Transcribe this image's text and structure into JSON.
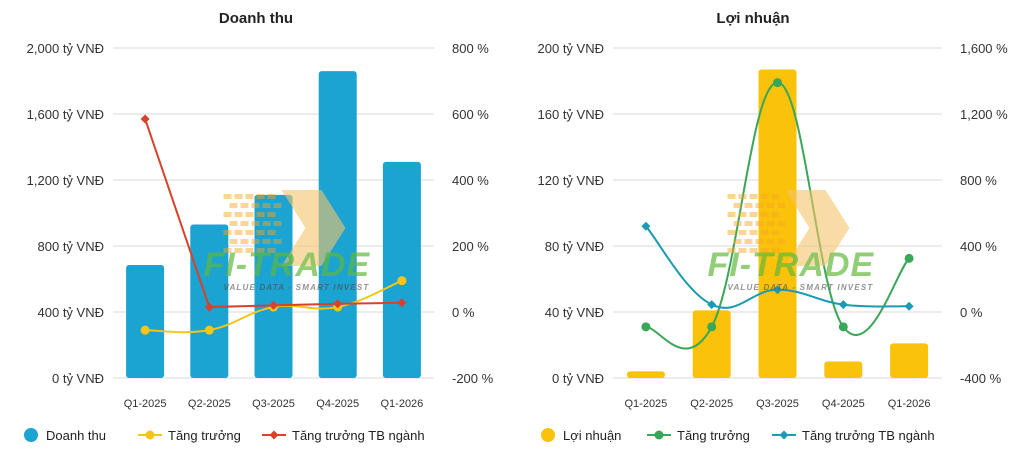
{
  "chart_data": [
    {
      "type": "bar",
      "title": "Doanh thu",
      "categories": [
        "Q1-2025",
        "Q2-2025",
        "Q3-2025",
        "Q4-2025",
        "Q1-2026"
      ],
      "ylim": [
        0,
        2000
      ],
      "yticks": [
        "0 tỷ VNĐ",
        "400 tỷ VNĐ",
        "800 tỷ VNĐ",
        "1,200 tỷ VNĐ",
        "1,600 tỷ VNĐ",
        "2,000 tỷ VNĐ"
      ],
      "y2lim": [
        -200,
        800
      ],
      "y2ticks": [
        "-200 %",
        "0 %",
        "200 %",
        "400 %",
        "600 %",
        "800 %"
      ],
      "grid": true,
      "legend_position": "bottom",
      "series": [
        {
          "name": "Doanh thu",
          "kind": "bar",
          "axis": "left",
          "color": "#1ba3d1",
          "values": [
            685,
            930,
            1110,
            1860,
            1310
          ]
        },
        {
          "name": "Tăng trưởng",
          "kind": "line",
          "axis": "right",
          "color": "#f5c518",
          "marker": "circle",
          "values": [
            -55,
            -55,
            15,
            15,
            95
          ]
        },
        {
          "name": "Tăng trưởng TB ngành",
          "kind": "line",
          "axis": "right",
          "color": "#d9412b",
          "marker": "diamond",
          "values": [
            585,
            15,
            20,
            25,
            28
          ]
        }
      ]
    },
    {
      "type": "bar",
      "title": "Lợi nhuận",
      "categories": [
        "Q1-2025",
        "Q2-2025",
        "Q3-2025",
        "Q4-2025",
        "Q1-2026"
      ],
      "ylim": [
        0,
        200
      ],
      "yticks": [
        "0 tỷ VNĐ",
        "40 tỷ VNĐ",
        "80 tỷ VNĐ",
        "120 tỷ VNĐ",
        "160 tỷ VNĐ",
        "200 tỷ VNĐ"
      ],
      "y2lim": [
        -400,
        1600
      ],
      "y2ticks": [
        "-400 %",
        "0 %",
        "400 %",
        "800 %",
        "1,200 %",
        "1,600 %"
      ],
      "grid": true,
      "legend_position": "bottom",
      "series": [
        {
          "name": "Lợi nhuận",
          "kind": "bar",
          "axis": "left",
          "color": "#fac20a",
          "values": [
            4,
            41,
            187,
            10,
            21
          ]
        },
        {
          "name": "Tăng trưởng",
          "kind": "line",
          "axis": "right",
          "color": "#3aa657",
          "marker": "circle",
          "values": [
            -90,
            -90,
            1390,
            -90,
            325
          ]
        },
        {
          "name": "Tăng trưởng TB ngành",
          "kind": "line",
          "axis": "right",
          "color": "#1a9bb2",
          "marker": "diamond",
          "values": [
            520,
            45,
            135,
            45,
            35
          ]
        }
      ]
    }
  ],
  "watermark": {
    "brand": "FI-TRADE",
    "tagline": "VALUE DATA - SMART INVEST",
    "colors": {
      "brand": "#5fb83a",
      "chevron": "#f5a623",
      "chevron_light": "#f7c56a"
    }
  }
}
